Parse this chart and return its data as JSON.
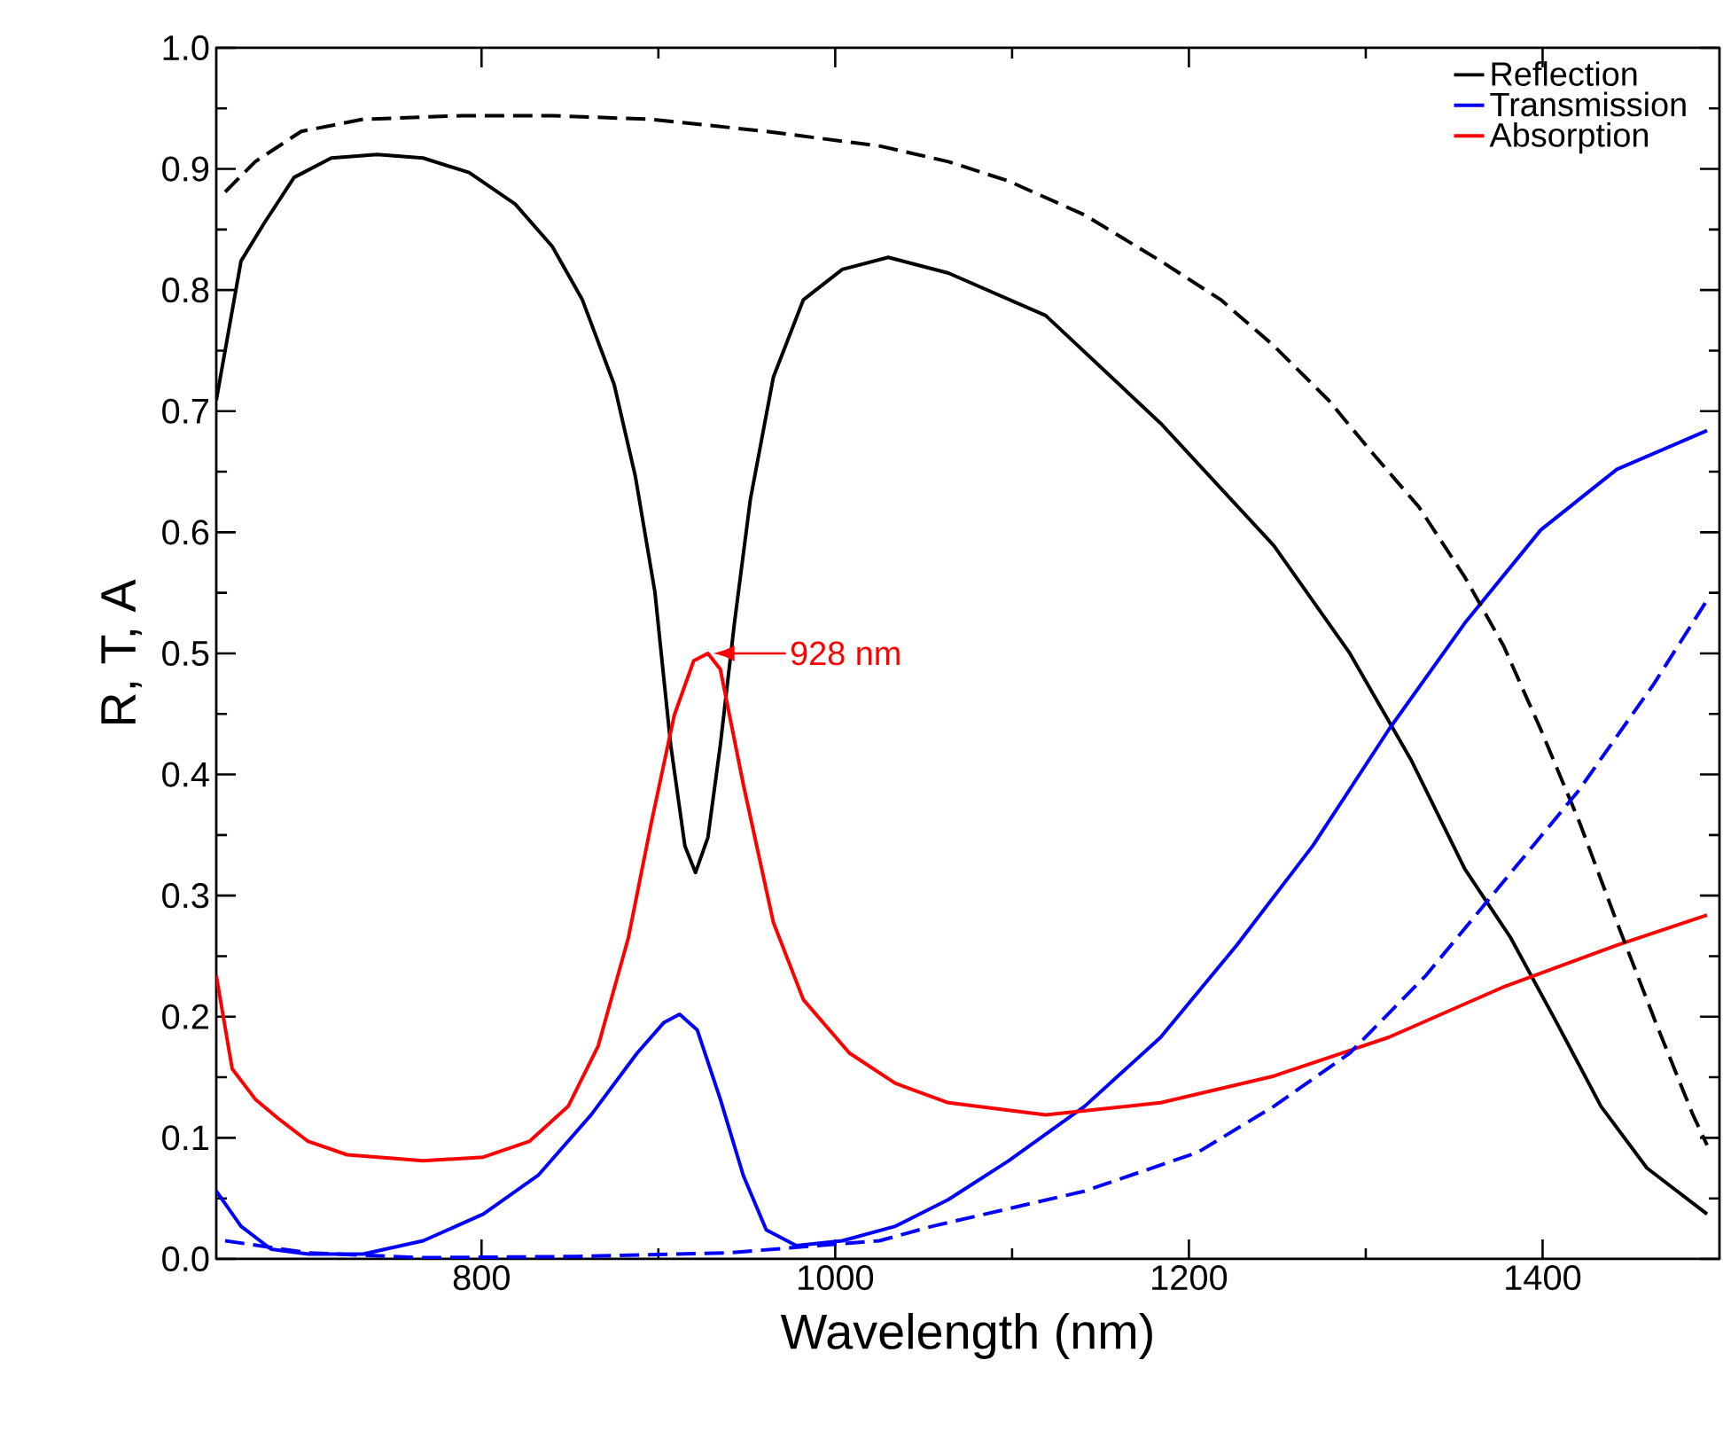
{
  "chart_data": {
    "type": "line",
    "xlabel": "Wavelength (nm)",
    "ylabel": "R, T, A",
    "xlim": [
      650,
      1500
    ],
    "ylim": [
      0,
      1
    ],
    "xticks": [
      800,
      1000,
      1200,
      1400
    ],
    "yticks": [
      {
        "value": 0,
        "label": "0.0"
      },
      {
        "value": 0.1,
        "label": "0.1"
      },
      {
        "value": 0.2,
        "label": "0.2"
      },
      {
        "value": 0.3,
        "label": "0.3"
      },
      {
        "value": 0.4,
        "label": "0.4"
      },
      {
        "value": 0.5,
        "label": "0.5"
      },
      {
        "value": 0.6,
        "label": "0.6"
      },
      {
        "value": 0.7,
        "label": "0.7"
      },
      {
        "value": 0.8,
        "label": "0.8"
      },
      {
        "value": 0.9,
        "label": "0.9"
      },
      {
        "value": 1,
        "label": "1.0"
      }
    ],
    "legend": "top right",
    "grid": false,
    "annotations": [
      {
        "text": "928 nm",
        "x": 928,
        "y": 0.5
      }
    ],
    "series": [
      {
        "name": "Reflection",
        "color": "#000000",
        "line_style": "solid",
        "x": [
          650,
          664,
          677,
          694,
          715,
          741,
          767,
          793,
          819,
          840,
          857,
          875,
          887,
          898,
          907,
          915,
          921,
          928,
          935,
          943,
          952,
          965,
          982,
          1004,
          1030,
          1064,
          1119,
          1184,
          1248,
          1291,
          1326,
          1356,
          1382,
          1408,
          1433,
          1459,
          1493
        ],
        "values": [
          0.709,
          0.824,
          0.855,
          0.893,
          0.909,
          0.912,
          0.909,
          0.897,
          0.871,
          0.836,
          0.792,
          0.722,
          0.646,
          0.551,
          0.424,
          0.341,
          0.319,
          0.348,
          0.424,
          0.525,
          0.627,
          0.728,
          0.792,
          0.817,
          0.827,
          0.814,
          0.779,
          0.69,
          0.589,
          0.5,
          0.411,
          0.322,
          0.265,
          0.195,
          0.126,
          0.075,
          0.037
        ]
      },
      {
        "name": "Transmission",
        "color": "#0000ff",
        "line_style": "solid",
        "x": [
          650,
          664,
          681,
          702,
          733,
          767,
          801,
          832,
          862,
          888,
          903,
          912,
          922,
          935,
          948,
          961,
          978,
          1004,
          1034,
          1064,
          1098,
          1141,
          1184,
          1227,
          1270,
          1313,
          1356,
          1399,
          1442,
          1493
        ],
        "values": [
          0.056,
          0.027,
          0.008,
          0.004,
          0.004,
          0.015,
          0.037,
          0.069,
          0.119,
          0.17,
          0.195,
          0.202,
          0.189,
          0.132,
          0.069,
          0.024,
          0.011,
          0.015,
          0.027,
          0.049,
          0.081,
          0.126,
          0.183,
          0.259,
          0.341,
          0.437,
          0.525,
          0.602,
          0.652,
          0.684
        ]
      },
      {
        "name": "Absorption",
        "color": "#ff0000",
        "line_style": "solid",
        "x": [
          650,
          659,
          672,
          685,
          702,
          724,
          767,
          801,
          827,
          849,
          866,
          883,
          896,
          909,
          920,
          928,
          935,
          948,
          965,
          982,
          1008,
          1034,
          1064,
          1119,
          1184,
          1248,
          1313,
          1377,
          1442,
          1493
        ],
        "values": [
          0.234,
          0.157,
          0.132,
          0.116,
          0.097,
          0.086,
          0.081,
          0.084,
          0.097,
          0.126,
          0.176,
          0.265,
          0.36,
          0.449,
          0.494,
          0.5,
          0.487,
          0.392,
          0.278,
          0.214,
          0.17,
          0.145,
          0.129,
          0.119,
          0.129,
          0.151,
          0.183,
          0.224,
          0.259,
          0.284
        ]
      },
      {
        "color": "#000000",
        "line_style": "dashed",
        "x": [
          655,
          672,
          698,
          733,
          789,
          840,
          896,
          961,
          1025,
          1064,
          1098,
          1141,
          1184,
          1218,
          1248,
          1279,
          1304,
          1330,
          1356,
          1378,
          1399,
          1421,
          1442,
          1464,
          1485,
          1493
        ],
        "values": [
          0.881,
          0.906,
          0.931,
          0.941,
          0.944,
          0.944,
          0.941,
          0.931,
          0.919,
          0.906,
          0.89,
          0.862,
          0.824,
          0.792,
          0.754,
          0.709,
          0.665,
          0.621,
          0.563,
          0.506,
          0.437,
          0.36,
          0.278,
          0.195,
          0.119,
          0.094
        ]
      },
      {
        "color": "#0000ff",
        "line_style": "dashed",
        "x": [
          655,
          702,
          767,
          853,
          939,
          1025,
          1055,
          1141,
          1205,
          1248,
          1291,
          1334,
          1377,
          1420,
          1463,
          1493
        ],
        "values": [
          0.015,
          0.005,
          0.001,
          0.002,
          0.005,
          0.015,
          0.027,
          0.056,
          0.088,
          0.126,
          0.17,
          0.234,
          0.31,
          0.386,
          0.475,
          0.544
        ]
      }
    ]
  }
}
